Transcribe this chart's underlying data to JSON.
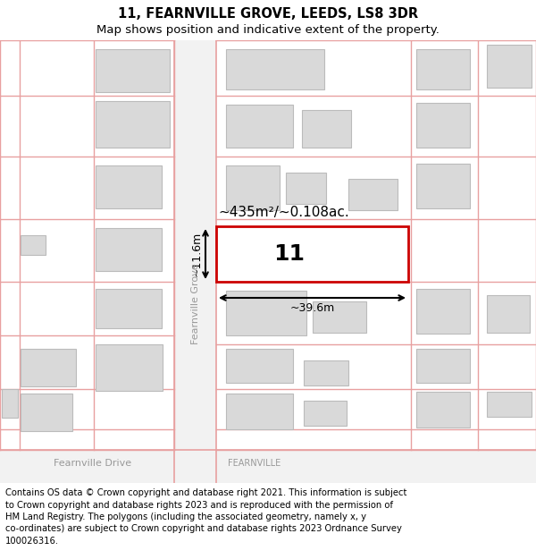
{
  "title_line1": "11, FEARNVILLE GROVE, LEEDS, LS8 3DR",
  "title_line2": "Map shows position and indicative extent of the property.",
  "footer_lines": [
    "Contains OS data © Crown copyright and database right 2021. This information is subject",
    "to Crown copyright and database rights 2023 and is reproduced with the permission of",
    "HM Land Registry. The polygons (including the associated geometry, namely x, y",
    "co-ordinates) are subject to Crown copyright and database rights 2023 Ordnance Survey",
    "100026316."
  ],
  "background_color": "#ffffff",
  "building_fill": "#d9d9d9",
  "building_edge": "#bbbbbb",
  "plot_fill": "#ffffff",
  "plot_edge": "#cc0000",
  "road_line_color": "#e8a0a0",
  "road_fill": "#f5f5f5",
  "dim_color": "#000000",
  "area_text": "~435m²/~0.108ac.",
  "width_text": "~39.6m",
  "height_text": "~11.6m",
  "plot_number": "11",
  "street_name_v": "Fearnville Grove",
  "street_name_h1": "Fearnville Drive",
  "street_name_h2": "FEARNVILLE",
  "title_fontsize": 10.5,
  "subtitle_fontsize": 9.5,
  "footer_fontsize": 7.2,
  "area_fontsize": 11,
  "dim_fontsize": 9,
  "street_fontsize": 8,
  "plot_num_fontsize": 18
}
